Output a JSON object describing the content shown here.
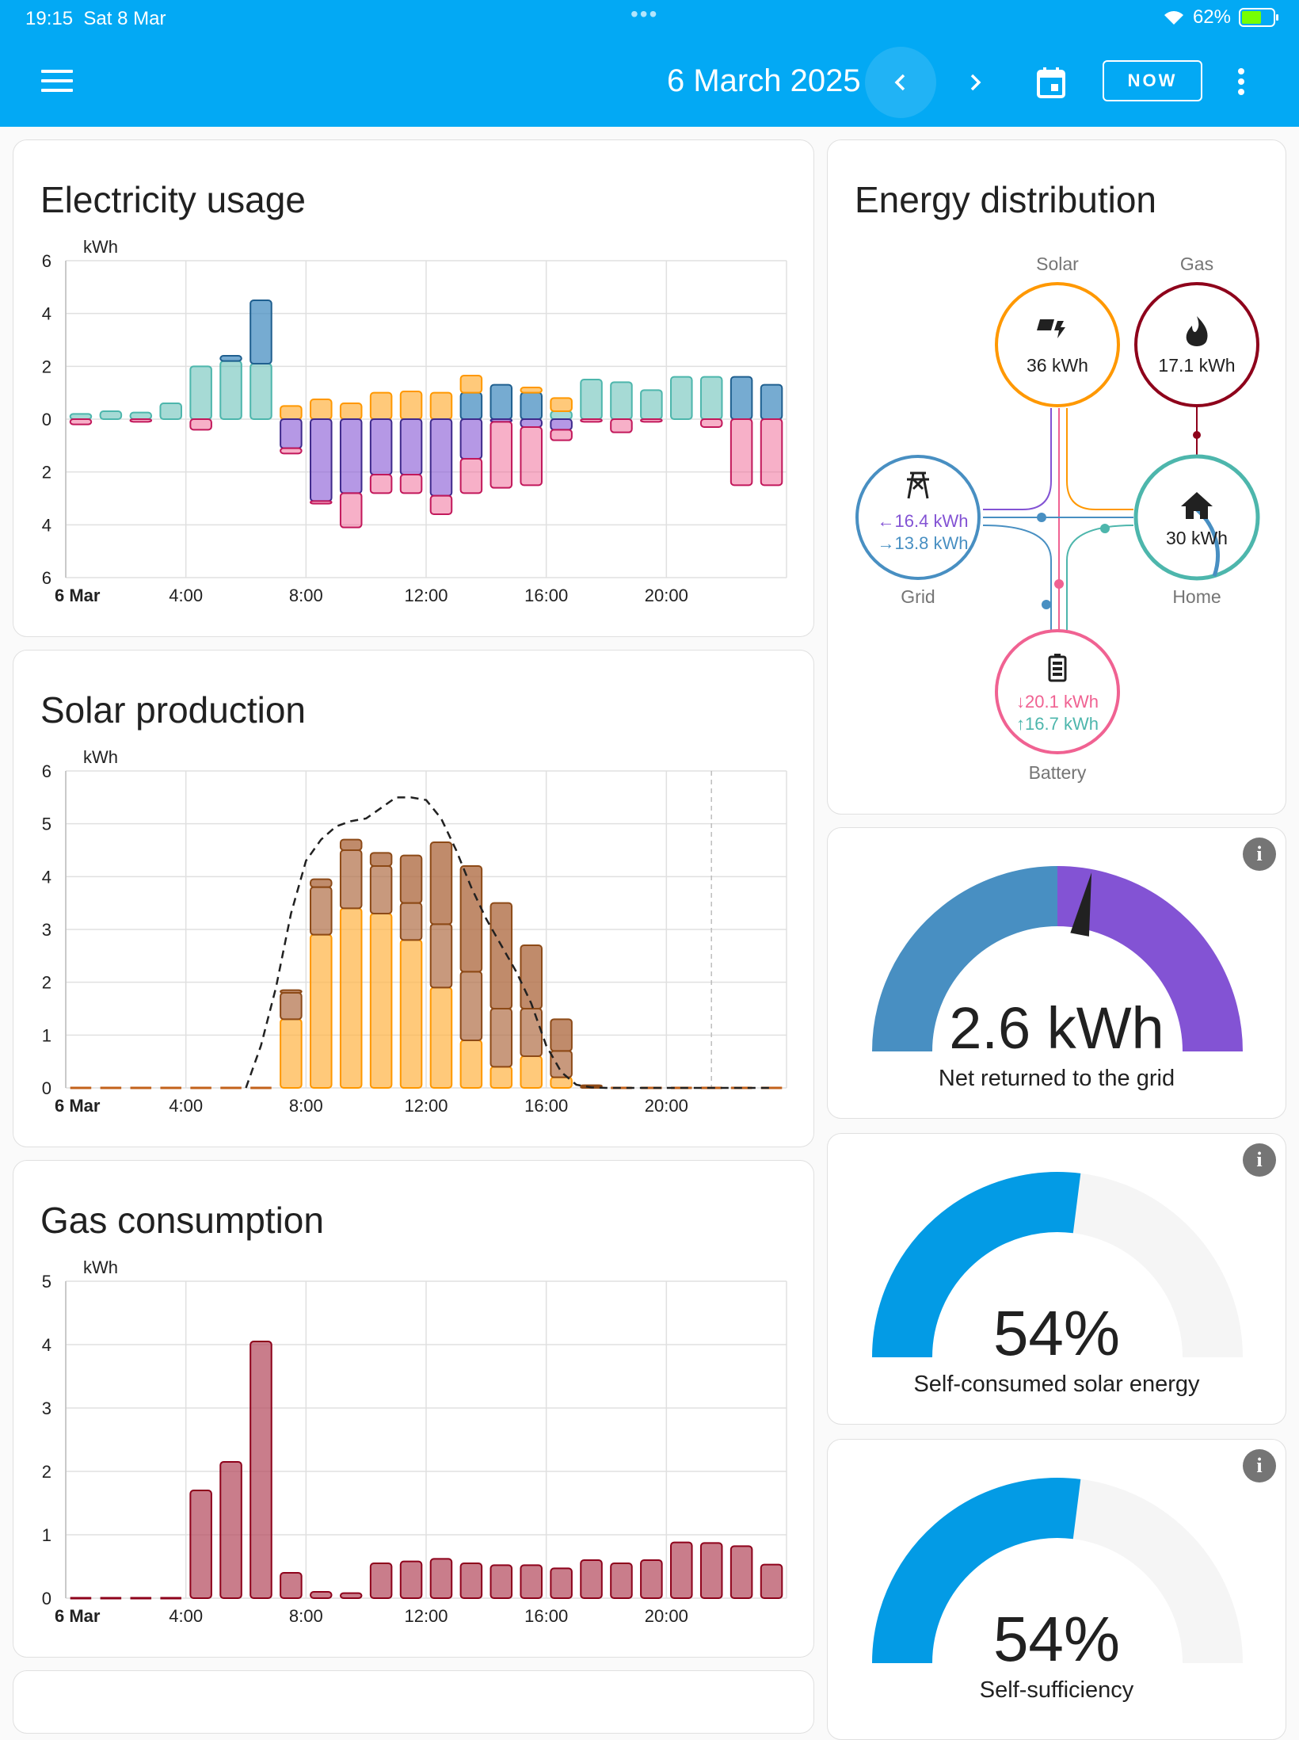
{
  "status_bar": {
    "time": "19:15",
    "date": "Sat 8 Mar",
    "battery": "62%"
  },
  "toolbar": {
    "date": "6 March 2025",
    "now_label": "NOW"
  },
  "colors": {
    "header": "#03a9f4",
    "grid_import": "#488fc2",
    "grid_export": "#8353d4",
    "solar": "#ff9800",
    "battery_out": "#4db6ac",
    "battery_in": "#f06292",
    "gas": "#8e021b",
    "home": "#4db6ac"
  },
  "electricity_usage": {
    "title": "Electricity usage",
    "unit": "kWh",
    "y_ticks": [
      "6",
      "4",
      "2",
      "0",
      "2",
      "4",
      "6"
    ],
    "x_ticks": [
      "6 Mar",
      "4:00",
      "8:00",
      "12:00",
      "16:00",
      "20:00"
    ],
    "chart_data": {
      "type": "bar",
      "stacked": true,
      "x_hours": [
        0,
        1,
        2,
        3,
        4,
        5,
        6,
        7,
        8,
        9,
        10,
        11,
        12,
        13,
        14,
        15,
        16,
        17,
        18,
        19,
        20,
        21,
        22,
        23
      ],
      "ylim": [
        -6,
        6
      ],
      "series": [
        {
          "key": "battery_discharge",
          "values": [
            0.2,
            0.3,
            0.25,
            0.6,
            2.0,
            2.2,
            2.1,
            0,
            0,
            0,
            0,
            0,
            0,
            0,
            0,
            0,
            0.3,
            1.5,
            1.4,
            1.1,
            1.6,
            1.6,
            0,
            0
          ]
        },
        {
          "key": "grid_import",
          "values": [
            0,
            0,
            0,
            0,
            0,
            0.2,
            2.4,
            0,
            0,
            0,
            0,
            0,
            0,
            1.0,
            1.3,
            1.0,
            0,
            0,
            0,
            0,
            0,
            0,
            1.6,
            1.3
          ]
        },
        {
          "key": "solar",
          "values": [
            0,
            0,
            0,
            0,
            0,
            0,
            0,
            0.5,
            0.75,
            0.6,
            1.0,
            1.05,
            1.0,
            0.65,
            0,
            0.2,
            0.5,
            0,
            0,
            0,
            0,
            0,
            0,
            0
          ]
        },
        {
          "key": "grid_export",
          "values": [
            0,
            0,
            0,
            0,
            0,
            0,
            0,
            -1.1,
            -3.1,
            -2.8,
            -2.1,
            -2.1,
            -2.9,
            -1.5,
            -0.1,
            -0.3,
            -0.4,
            0,
            0,
            0,
            0,
            0,
            0,
            0
          ]
        },
        {
          "key": "battery_charge",
          "values": [
            -0.2,
            0,
            -0.1,
            0,
            -0.4,
            0,
            0,
            -0.2,
            -0.1,
            -1.3,
            -0.7,
            -0.7,
            -0.7,
            -1.3,
            -2.5,
            -2.2,
            -0.4,
            -0.1,
            -0.5,
            -0.1,
            0,
            -0.3,
            -2.5,
            -2.5
          ]
        }
      ]
    }
  },
  "solar_production": {
    "title": "Solar production",
    "unit": "kWh",
    "y_ticks": [
      "6",
      "5",
      "4",
      "3",
      "2",
      "1",
      "0"
    ],
    "x_ticks": [
      "6 Mar",
      "4:00",
      "8:00",
      "12:00",
      "16:00",
      "20:00"
    ],
    "chart_data": {
      "type": "bar",
      "stacked": true,
      "x_hours": [
        0,
        1,
        2,
        3,
        4,
        5,
        6,
        7,
        8,
        9,
        10,
        11,
        12,
        13,
        14,
        15,
        16,
        17,
        18,
        19,
        20,
        21,
        22,
        23
      ],
      "ylim": [
        0,
        6
      ],
      "series": [
        {
          "key": "array_1",
          "values": [
            0,
            0,
            0,
            0,
            0,
            0,
            0,
            1.3,
            2.9,
            3.4,
            3.3,
            2.8,
            1.9,
            0.9,
            0.4,
            0.6,
            0.2,
            0,
            0,
            0,
            0,
            0,
            0,
            0
          ]
        },
        {
          "key": "array_2",
          "values": [
            0,
            0,
            0,
            0,
            0,
            0,
            0,
            0.5,
            0.9,
            1.1,
            0.9,
            0.7,
            1.2,
            1.3,
            1.1,
            0.9,
            0.5,
            0.02,
            0,
            0,
            0,
            0,
            0,
            0
          ]
        },
        {
          "key": "array_3",
          "values": [
            0,
            0,
            0,
            0,
            0,
            0,
            0,
            0.05,
            0.15,
            0.2,
            0.25,
            0.9,
            1.55,
            2.0,
            2.0,
            1.2,
            0.6,
            0.03,
            0,
            0,
            0,
            0,
            0,
            0
          ]
        }
      ],
      "forecast": {
        "x": [
          6,
          6.5,
          7,
          7.5,
          8,
          8.5,
          9,
          9.5,
          10,
          10.5,
          11,
          11.5,
          12,
          12.5,
          13,
          13.5,
          14,
          14.5,
          15,
          15.5,
          16,
          16.5,
          17,
          17.5,
          18,
          23.5
        ],
        "y": [
          0,
          0.8,
          1.9,
          3.3,
          4.3,
          4.7,
          4.95,
          5.05,
          5.1,
          5.3,
          5.5,
          5.5,
          5.45,
          5.1,
          4.5,
          3.8,
          3.2,
          2.7,
          2.2,
          1.6,
          0.8,
          0.3,
          0.06,
          0.01,
          0,
          0
        ]
      },
      "now_marker_hour": 21.5
    }
  },
  "gas_consumption": {
    "title": "Gas consumption",
    "unit": "kWh",
    "y_ticks": [
      "5",
      "4",
      "3",
      "2",
      "1",
      "0"
    ],
    "x_ticks": [
      "6 Mar",
      "4:00",
      "8:00",
      "12:00",
      "16:00",
      "20:00"
    ],
    "chart_data": {
      "type": "bar",
      "x_hours": [
        0,
        1,
        2,
        3,
        4,
        5,
        6,
        7,
        8,
        9,
        10,
        11,
        12,
        13,
        14,
        15,
        16,
        17,
        18,
        19,
        20,
        21,
        22,
        23
      ],
      "ylim": [
        0,
        5
      ],
      "values": [
        0.02,
        0.02,
        0.02,
        0.02,
        1.7,
        2.15,
        4.05,
        0.4,
        0.1,
        0.08,
        0.55,
        0.58,
        0.62,
        0.55,
        0.52,
        0.52,
        0.47,
        0.6,
        0.55,
        0.6,
        0.88,
        0.87,
        0.82,
        0.53
      ]
    }
  },
  "energy_distribution": {
    "title": "Energy distribution",
    "solar": {
      "label": "Solar",
      "value": "36 kWh"
    },
    "gas": {
      "label": "Gas",
      "value": "17.1 kWh"
    },
    "grid": {
      "label": "Grid",
      "in": "16.4 kWh",
      "out": "13.8 kWh"
    },
    "home": {
      "label": "Home",
      "value": "30 kWh"
    },
    "battery": {
      "label": "Battery",
      "in": "20.1 kWh",
      "out": "16.7 kWh"
    }
  },
  "gauge_grid": {
    "value": "2.6 kWh",
    "label": "Net returned to the grid",
    "needle_fraction": 0.56
  },
  "gauge_self_consumed": {
    "value": "54%",
    "label": "Self-consumed solar energy",
    "fraction": 0.54
  },
  "gauge_self_sufficiency": {
    "value": "54%",
    "label": "Self-sufficiency",
    "fraction": 0.54
  }
}
